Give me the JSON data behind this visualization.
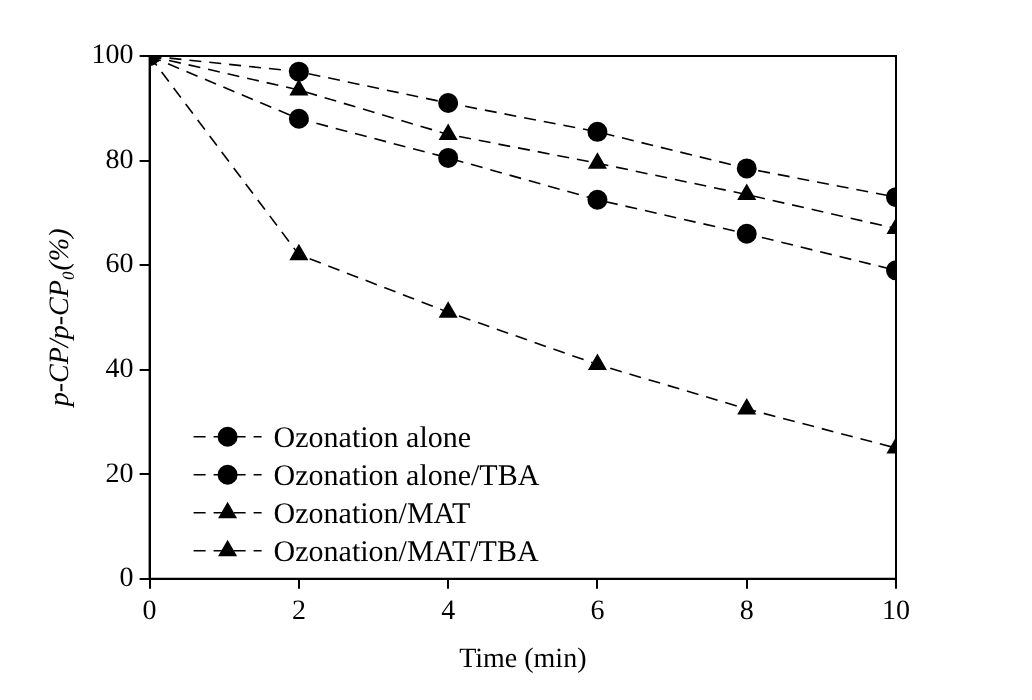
{
  "chart_data": {
    "type": "line",
    "xlabel": "Time (min)",
    "ylabel": "p-CP/p-CP₀(%)",
    "x": [
      0,
      2,
      4,
      6,
      8,
      10
    ],
    "series": [
      {
        "name": "Ozonation alone",
        "color": "#000000",
        "marker": "circle",
        "values": [
          100,
          88,
          80.5,
          72.5,
          66,
          59
        ]
      },
      {
        "name": "Ozonation alone/TBA",
        "color": "#000000",
        "marker": "circle",
        "values": [
          100,
          97,
          91,
          85.5,
          78.5,
          73
        ]
      },
      {
        "name": "Ozonation/MAT",
        "color": "#000000",
        "marker": "triangle",
        "values": [
          100,
          62,
          51,
          41,
          32.5,
          25
        ]
      },
      {
        "name": "Ozonation/MAT/TBA",
        "color": "#000000",
        "marker": "triangle",
        "values": [
          100,
          93.5,
          85,
          79.5,
          73.5,
          67
        ]
      }
    ],
    "xlim": [
      0,
      10
    ],
    "xticks": [
      0,
      2,
      4,
      6,
      8,
      10
    ],
    "ylim": [
      0,
      100
    ],
    "yticks": [
      0,
      20,
      40,
      60,
      80,
      100
    ],
    "grid": false,
    "legend": "bottom left",
    "line_style": "dashed"
  }
}
